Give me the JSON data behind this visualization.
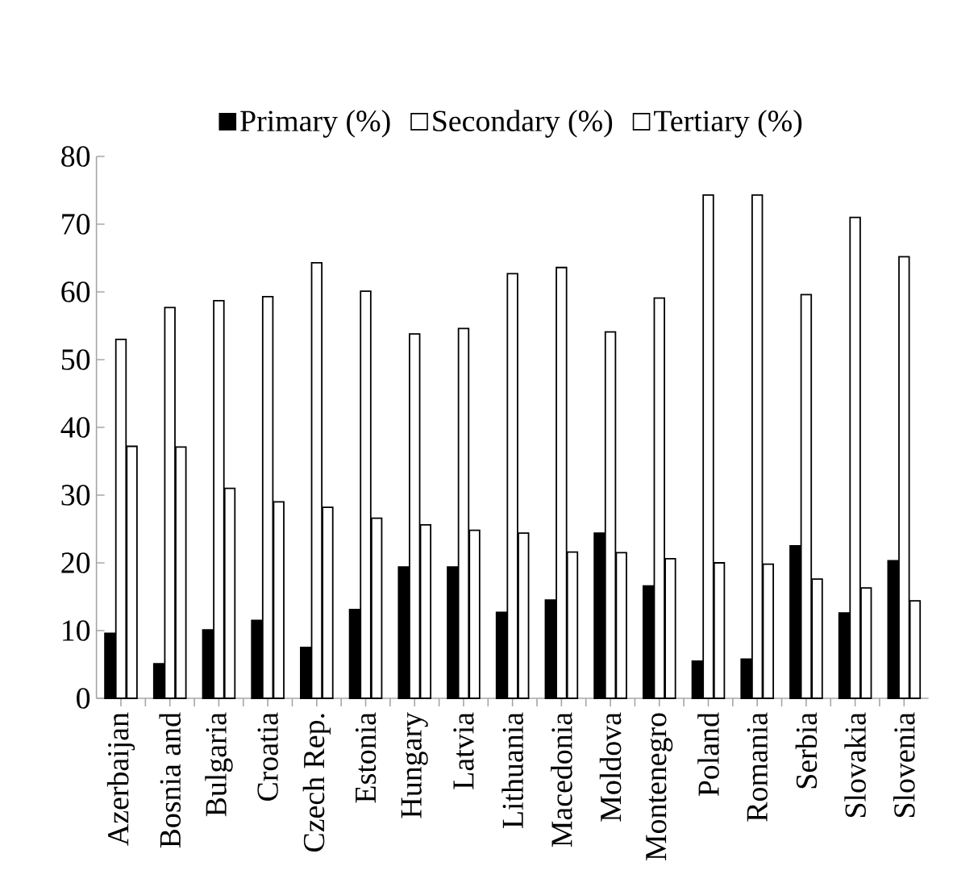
{
  "chart_data": {
    "type": "bar",
    "categories": [
      "Azerbaijan",
      "Bosnia and",
      "Bulgaria",
      "Croatia",
      "Czech Rep.",
      "Estonia",
      "Hungary",
      "Latvia",
      "Lithuania",
      "Macedonia",
      "Moldova",
      "Montenegro",
      "Poland",
      "Romania",
      "Serbia",
      "Slovakia",
      "Slovenia"
    ],
    "series": [
      {
        "name": "Primary (%)",
        "color": "#000000",
        "values": [
          9.6,
          5.1,
          10.1,
          11.5,
          7.5,
          13.1,
          19.4,
          19.4,
          12.7,
          14.5,
          24.4,
          16.6,
          5.5,
          5.8,
          22.5,
          12.6,
          20.3
        ]
      },
      {
        "name": "Secondary (%)",
        "color": "#ffffff",
        "values": [
          53,
          57.7,
          58.7,
          59.3,
          64.3,
          60.1,
          53.8,
          54.6,
          62.7,
          63.6,
          54.1,
          59.1,
          74.3,
          74.3,
          59.6,
          71,
          65.2
        ]
      },
      {
        "name": "Tertiary (%)",
        "color": "#ffffff",
        "values": [
          37.2,
          37.1,
          31,
          29,
          28.2,
          26.6,
          25.6,
          24.8,
          24.4,
          21.6,
          21.5,
          20.6,
          20,
          19.8,
          17.6,
          16.3,
          14.4
        ]
      }
    ],
    "ylim": [
      0,
      80
    ],
    "yticks": [
      0,
      10,
      20,
      30,
      40,
      50,
      60,
      70,
      80
    ],
    "grid": false,
    "legend": "top"
  }
}
